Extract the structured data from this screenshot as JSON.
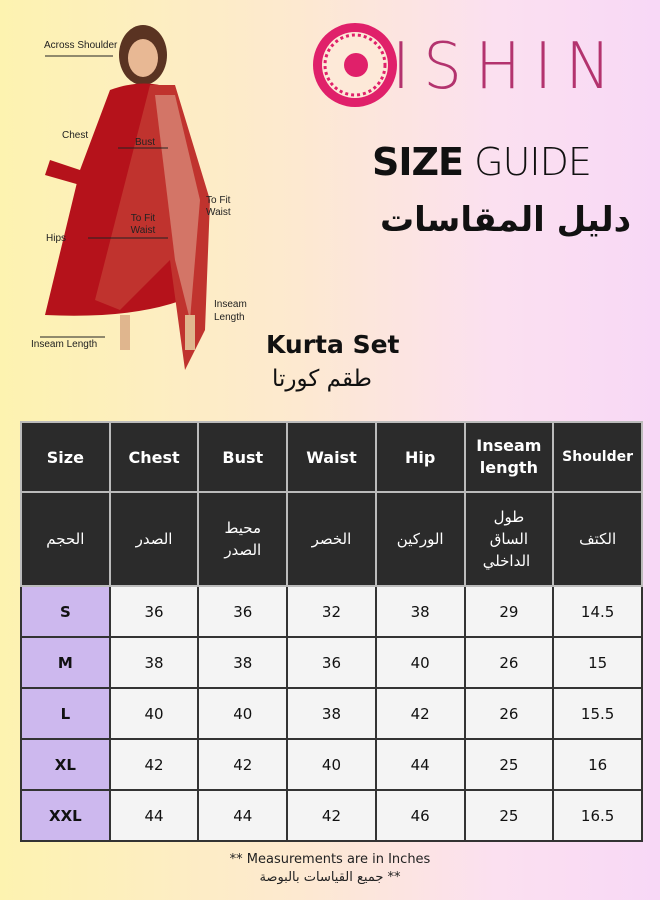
{
  "brand": {
    "name": "ISHIN",
    "logo_color": "#e0206a",
    "text_color": "#b3336e"
  },
  "title": {
    "bold": "SIZE",
    "light": "GUIDE",
    "arabic": "دليل المقاسات"
  },
  "product": {
    "name": "Kurta Set",
    "arabic": "طقم كورتا"
  },
  "figure_labels": {
    "shoulder": "Across Shoulder",
    "chest": "Chest",
    "bust": "Bust",
    "waist_outer": "To Fit Waist",
    "waist_inner": "To Fit Waist",
    "hips": "Hips",
    "inseam_right": "Inseam Length",
    "inseam_left": "Inseam Length"
  },
  "table": {
    "headers": [
      "Size",
      "Chest",
      "Bust",
      "Waist",
      "Hip",
      "Inseam length",
      "Shoulder"
    ],
    "headers_ar": [
      "الحجم",
      "الصدر",
      "محيط الصدر",
      "الخصر",
      "الوركين",
      "طول الساق الداخلي",
      "الكتف"
    ],
    "rows": [
      [
        "S",
        "36",
        "36",
        "32",
        "38",
        "29",
        "14.5"
      ],
      [
        "M",
        "38",
        "38",
        "36",
        "40",
        "26",
        "15"
      ],
      [
        "L",
        "40",
        "40",
        "38",
        "42",
        "26",
        "15.5"
      ],
      [
        "XL",
        "42",
        "42",
        "40",
        "44",
        "25",
        "16"
      ],
      [
        "XXL",
        "44",
        "44",
        "42",
        "46",
        "25",
        "16.5"
      ]
    ]
  },
  "footer": {
    "en": "** Measurements are in Inches",
    "ar": "** جميع القياسات بالبوصة"
  }
}
